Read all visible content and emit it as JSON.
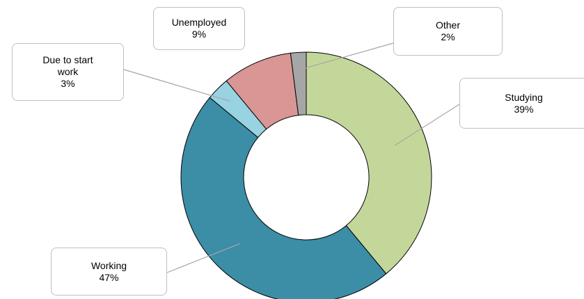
{
  "chart_data": {
    "type": "donut",
    "categories": [
      "Studying",
      "Working",
      "Due to start work",
      "Unemployed",
      "Other"
    ],
    "values": [
      39,
      47,
      3,
      9,
      2
    ],
    "value_labels": [
      "39%",
      "47%",
      "3%",
      "9%",
      "2%"
    ],
    "colors": [
      "#c4d79b",
      "#3c8da6",
      "#99d2e0",
      "#d99694",
      "#a6a6a6"
    ]
  }
}
